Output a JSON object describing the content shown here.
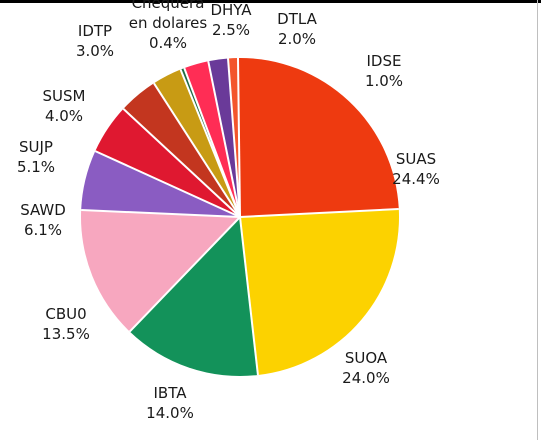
{
  "chart_data": {
    "type": "pie",
    "title": "",
    "slices": [
      {
        "label": "IDSE",
        "value": 1.0,
        "pct": "1.0%",
        "color": "#f3552c"
      },
      {
        "label": "SUAS",
        "value": 24.4,
        "pct": "24.4%",
        "color": "#ee3a10"
      },
      {
        "label": "SUOA",
        "value": 24.0,
        "pct": "24.0%",
        "color": "#fcd200"
      },
      {
        "label": "IBTA",
        "value": 14.0,
        "pct": "14.0%",
        "color": "#13925a"
      },
      {
        "label": "CBU0",
        "value": 13.5,
        "pct": "13.5%",
        "color": "#f7a7bf"
      },
      {
        "label": "SAWD",
        "value": 6.1,
        "pct": "6.1%",
        "color": "#8a5cc2"
      },
      {
        "label": "SUJP",
        "value": 5.1,
        "pct": "5.1%",
        "color": "#df1830"
      },
      {
        "label": "SUSM",
        "value": 4.0,
        "pct": "4.0%",
        "color": "#c3361f"
      },
      {
        "label": "IDTP",
        "value": 3.0,
        "pct": "3.0%",
        "color": "#c89b14"
      },
      {
        "label": "Chequera en dolares",
        "value": 0.4,
        "pct": "0.4%",
        "color": "#1f6b45"
      },
      {
        "label": "DHYA",
        "value": 2.5,
        "pct": "2.5%",
        "color": "#ff2d55"
      },
      {
        "label": "DTLA",
        "value": 2.0,
        "pct": "2.0%",
        "color": "#6a3a99"
      }
    ]
  }
}
